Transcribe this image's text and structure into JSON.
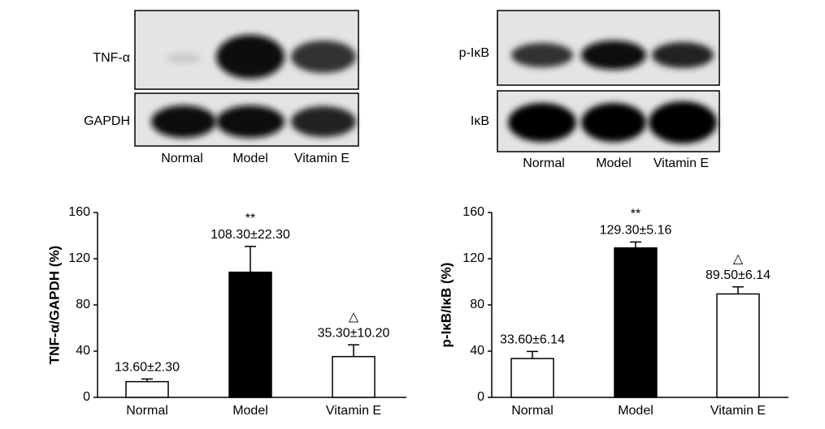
{
  "blots": [
    {
      "rows": [
        "TNF-α",
        "GAPDH"
      ],
      "lanes": [
        "Normal",
        "Model",
        "Vitamin E"
      ]
    },
    {
      "rows": [
        "p-IκB",
        "IκB"
      ],
      "lanes": [
        "Normal",
        "Model",
        "Vitamin E"
      ]
    }
  ],
  "chart_data": [
    {
      "type": "bar",
      "ylabel": "TNF-α/GAPDH (%)",
      "categories": [
        "Normal",
        "Model",
        "Vitamin E"
      ],
      "values": [
        13.6,
        108.3,
        35.3
      ],
      "errors": [
        2.3,
        22.3,
        10.2
      ],
      "value_labels": [
        "13.60±2.30",
        "108.30±22.30",
        "35.30±10.20"
      ],
      "annotations": [
        null,
        "**",
        "△"
      ],
      "colors": [
        "#ffffff",
        "#000000",
        "#ffffff"
      ],
      "ylim": [
        0,
        160
      ],
      "yticks": [
        0,
        40,
        80,
        120,
        160
      ]
    },
    {
      "type": "bar",
      "ylabel": "p-IκB/IκB (%)",
      "categories": [
        "Normal",
        "Model",
        "Vitamin E"
      ],
      "values": [
        33.6,
        129.3,
        89.5
      ],
      "errors": [
        6.14,
        5.16,
        6.14
      ],
      "value_labels": [
        "33.60±6.14",
        "129.30±5.16",
        "89.50±6.14"
      ],
      "annotations": [
        null,
        "**",
        "△"
      ],
      "colors": [
        "#ffffff",
        "#000000",
        "#ffffff"
      ],
      "ylim": [
        0,
        160
      ],
      "yticks": [
        0,
        40,
        80,
        120,
        160
      ]
    }
  ]
}
